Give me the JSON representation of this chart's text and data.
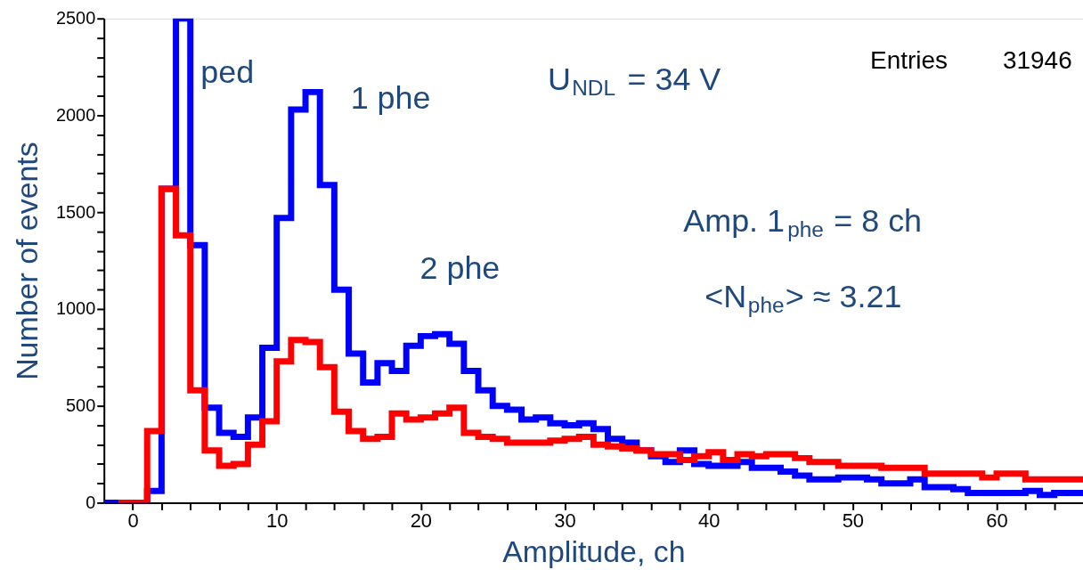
{
  "chart_data": {
    "type": "histogram",
    "xlabel": "Amplitude, ch",
    "ylabel": "Number of events",
    "bins": [
      -2,
      -1,
      0,
      1,
      2,
      3,
      4,
      5,
      6,
      7,
      8,
      9,
      10,
      11,
      12,
      13,
      14,
      15,
      16,
      17,
      18,
      19,
      20,
      21,
      22,
      23,
      24,
      25,
      26,
      27,
      28,
      29,
      30,
      31,
      32,
      33,
      34,
      35,
      36,
      37,
      38,
      39,
      40,
      41,
      42,
      43,
      44,
      45,
      46,
      47,
      48,
      49,
      50,
      51,
      52,
      53,
      54,
      55,
      56,
      57,
      58,
      59,
      60,
      61,
      62,
      63,
      64,
      65,
      66
    ],
    "series": [
      {
        "color": "#0000ff",
        "values": [
          0,
          0,
          0,
          60,
          1620,
          2500,
          1330,
          490,
          360,
          340,
          440,
          800,
          1470,
          2030,
          2120,
          1640,
          1100,
          770,
          620,
          720,
          680,
          810,
          860,
          870,
          820,
          680,
          580,
          500,
          480,
          430,
          440,
          410,
          400,
          410,
          380,
          330,
          310,
          270,
          240,
          210,
          270,
          200,
          190,
          190,
          210,
          180,
          180,
          160,
          140,
          120,
          120,
          130,
          130,
          120,
          100,
          100,
          120,
          80,
          80,
          70,
          50,
          50,
          50,
          50,
          60,
          40,
          50,
          50
        ]
      },
      {
        "color": "#ff0000",
        "bins": [
          -1,
          0,
          1,
          2,
          3,
          4,
          5,
          6,
          7,
          8,
          9,
          10,
          11,
          12,
          13,
          14,
          15,
          16,
          17,
          18,
          19,
          20,
          21,
          22,
          23,
          24,
          25,
          26,
          27,
          28,
          29,
          30,
          31,
          32,
          33,
          34,
          35,
          36,
          37,
          38,
          39,
          40,
          41,
          42,
          43,
          44,
          45,
          46,
          47,
          48,
          49,
          50,
          51,
          52,
          53,
          54,
          55,
          56,
          57,
          58,
          59,
          60,
          61,
          62,
          63,
          64,
          65,
          66
        ],
        "values": [
          0,
          0,
          370,
          1620,
          1380,
          580,
          270,
          190,
          200,
          300,
          420,
          730,
          840,
          830,
          700,
          470,
          370,
          330,
          340,
          460,
          430,
          440,
          460,
          490,
          360,
          340,
          330,
          310,
          310,
          310,
          320,
          330,
          340,
          300,
          290,
          280,
          270,
          250,
          250,
          220,
          240,
          260,
          220,
          250,
          240,
          250,
          250,
          230,
          210,
          210,
          190,
          190,
          190,
          180,
          180,
          180,
          150,
          150,
          150,
          150,
          130,
          150,
          150,
          120,
          120,
          120,
          120
        ]
      }
    ],
    "xlim": [
      -2,
      66
    ],
    "xticks": [
      0,
      {
        "value": 2,
        "label": null
      },
      {
        "value": 4,
        "label": null
      },
      {
        "value": 6,
        "label": null
      },
      {
        "value": 8,
        "label": null
      },
      10,
      {
        "value": 12,
        "label": null
      },
      {
        "value": 14,
        "label": null
      },
      {
        "value": 16,
        "label": null
      },
      {
        "value": 18,
        "label": null
      },
      20,
      {
        "value": 22,
        "label": null
      },
      {
        "value": 24,
        "label": null
      },
      {
        "value": 26,
        "label": null
      },
      {
        "value": 28,
        "label": null
      },
      30,
      {
        "value": 32,
        "label": null
      },
      {
        "value": 34,
        "label": null
      },
      {
        "value": 36,
        "label": null
      },
      {
        "value": 38,
        "label": null
      },
      40,
      {
        "value": 42,
        "label": null
      },
      {
        "value": 44,
        "label": null
      },
      {
        "value": 46,
        "label": null
      },
      {
        "value": 48,
        "label": null
      },
      50,
      {
        "value": 52,
        "label": null
      },
      {
        "value": 54,
        "label": null
      },
      {
        "value": 56,
        "label": null
      },
      {
        "value": 58,
        "label": null
      },
      60,
      {
        "value": 62,
        "label": null
      },
      {
        "value": 64,
        "label": null
      }
    ],
    "ylim": [
      0,
      2500
    ],
    "yticks": [
      0,
      {
        "value": 100,
        "label": null
      },
      {
        "value": 200,
        "label": null
      },
      {
        "value": 300,
        "label": null
      },
      {
        "value": 400,
        "label": null
      },
      500,
      {
        "value": 600,
        "label": null
      },
      {
        "value": 700,
        "label": null
      },
      {
        "value": 800,
        "label": null
      },
      {
        "value": 900,
        "label": null
      },
      1000,
      {
        "value": 1100,
        "label": null
      },
      {
        "value": 1200,
        "label": null
      },
      {
        "value": 1300,
        "label": null
      },
      {
        "value": 1400,
        "label": null
      },
      1500,
      {
        "value": 1600,
        "label": null
      },
      {
        "value": 1700,
        "label": null
      },
      {
        "value": 1800,
        "label": null
      },
      {
        "value": 1900,
        "label": null
      },
      2000,
      {
        "value": 2100,
        "label": null
      },
      {
        "value": 2200,
        "label": null
      },
      {
        "value": 2300,
        "label": null
      },
      {
        "value": 2400,
        "label": null
      },
      2500
    ],
    "grid": false,
    "annotations": [
      "ped",
      "1 phe",
      "2 phe",
      "U$_{NDL}$ = 34 V",
      "Amp. 1$_{phe}$ = 8 ch",
      "<N$_{phe}$> ≈ 3.21",
      "Entries",
      "31946"
    ]
  }
}
